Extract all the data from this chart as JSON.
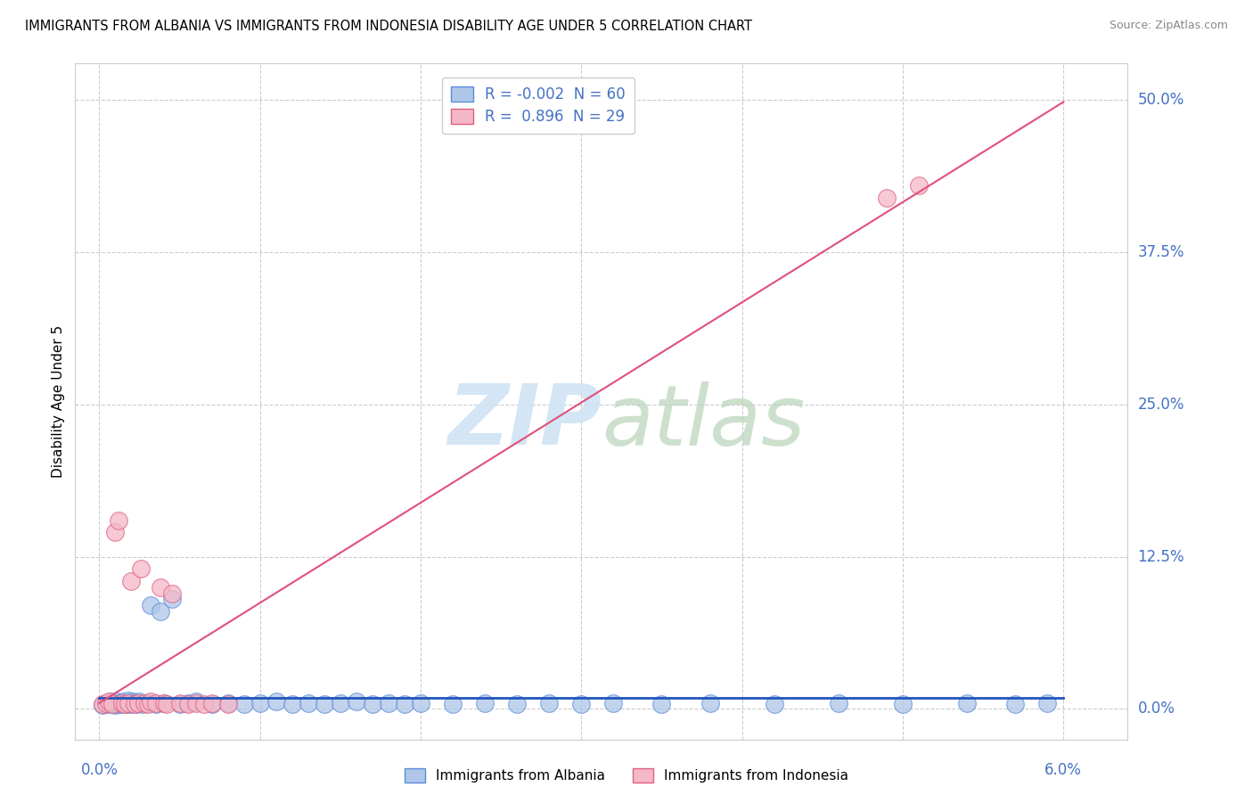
{
  "title": "IMMIGRANTS FROM ALBANIA VS IMMIGRANTS FROM INDONESIA DISABILITY AGE UNDER 5 CORRELATION CHART",
  "source": "Source: ZipAtlas.com",
  "ylabel": "Disability Age Under 5",
  "xlim": [
    0.0,
    6.0
  ],
  "ylim": [
    0.0,
    50.0
  ],
  "yticks": [
    0.0,
    12.5,
    25.0,
    37.5,
    50.0
  ],
  "xticks": [
    0.0,
    1.0,
    2.0,
    3.0,
    4.0,
    5.0,
    6.0
  ],
  "albania_R": -0.002,
  "albania_N": 60,
  "indonesia_R": 0.896,
  "indonesia_N": 29,
  "albania_color": "#aec6e8",
  "albania_edge_color": "#5b8dd9",
  "indonesia_color": "#f4b8c8",
  "indonesia_edge_color": "#e06080",
  "albania_line_color": "#2255bb",
  "indonesia_line_color": "#e0507a",
  "watermark_color": "#d0e4f4",
  "albania_x": [
    0.02,
    0.04,
    0.06,
    0.07,
    0.08,
    0.09,
    0.1,
    0.11,
    0.12,
    0.13,
    0.14,
    0.15,
    0.16,
    0.17,
    0.18,
    0.19,
    0.2,
    0.21,
    0.22,
    0.23,
    0.24,
    0.25,
    0.27,
    0.3,
    0.32,
    0.35,
    0.38,
    0.4,
    0.45,
    0.5,
    0.55,
    0.6,
    0.7,
    0.8,
    0.9,
    1.0,
    1.1,
    1.2,
    1.3,
    1.4,
    1.5,
    1.6,
    1.7,
    1.8,
    1.9,
    2.0,
    2.2,
    2.4,
    2.6,
    2.8,
    3.0,
    3.2,
    3.5,
    3.8,
    4.2,
    4.6,
    5.0,
    5.4,
    5.7,
    5.9
  ],
  "albania_y": [
    0.3,
    0.5,
    0.4,
    0.6,
    0.4,
    0.5,
    0.3,
    0.6,
    0.4,
    0.5,
    0.4,
    0.6,
    0.5,
    0.4,
    0.7,
    0.5,
    0.4,
    0.6,
    0.5,
    0.4,
    0.5,
    0.6,
    0.4,
    0.5,
    8.5,
    0.4,
    8.0,
    0.5,
    9.0,
    0.4,
    0.5,
    0.6,
    0.4,
    0.5,
    0.4,
    0.5,
    0.6,
    0.4,
    0.5,
    0.4,
    0.5,
    0.6,
    0.4,
    0.5,
    0.4,
    0.5,
    0.4,
    0.5,
    0.4,
    0.5,
    0.4,
    0.5,
    0.4,
    0.5,
    0.4,
    0.5,
    0.4,
    0.5,
    0.4,
    0.5
  ],
  "indonesia_x": [
    0.02,
    0.04,
    0.06,
    0.08,
    0.1,
    0.12,
    0.14,
    0.16,
    0.18,
    0.2,
    0.22,
    0.24,
    0.26,
    0.28,
    0.3,
    0.32,
    0.35,
    0.38,
    0.4,
    0.42,
    0.45,
    0.5,
    0.55,
    0.6,
    0.65,
    0.7,
    0.8,
    4.9,
    5.1
  ],
  "indonesia_y": [
    0.4,
    0.5,
    0.6,
    0.4,
    14.5,
    15.5,
    0.5,
    0.4,
    0.5,
    10.5,
    0.4,
    0.5,
    11.5,
    0.5,
    0.4,
    0.6,
    0.5,
    10.0,
    0.5,
    0.4,
    9.5,
    0.5,
    0.4,
    0.5,
    0.4,
    0.5,
    0.4,
    42.0,
    43.0
  ]
}
